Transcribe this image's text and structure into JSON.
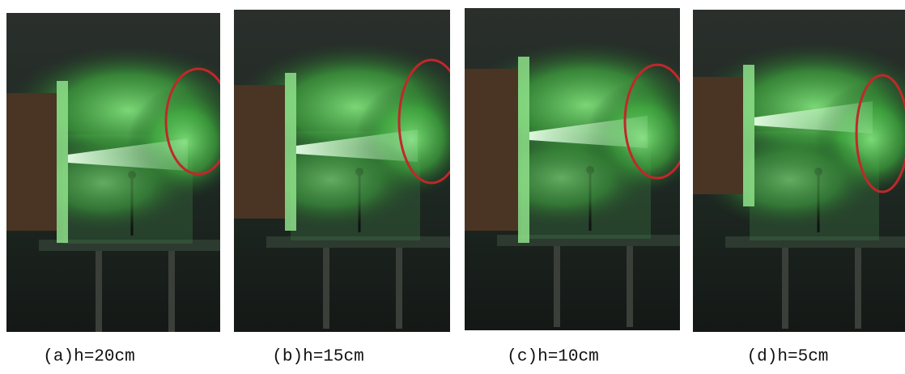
{
  "panels": [
    {
      "caption": "(a)h=20cm"
    },
    {
      "caption": "(b)h=15cm"
    },
    {
      "caption": "(c)h=10cm"
    },
    {
      "caption": "(d)h=5cm"
    }
  ]
}
